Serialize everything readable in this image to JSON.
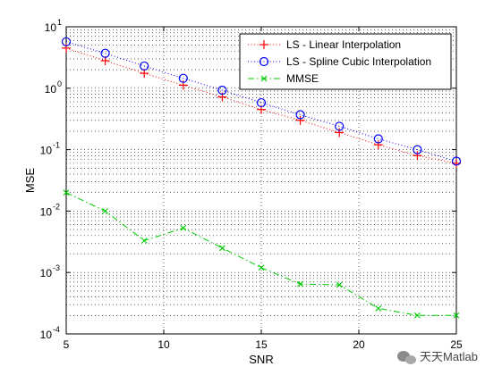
{
  "chart_data": {
    "type": "line",
    "xlabel": "SNR",
    "ylabel": "MSE",
    "xlim": [
      5,
      25
    ],
    "ylim": [
      0.0001,
      10
    ],
    "yscale": "log",
    "grid": "dotted, with minor log gridlines",
    "legend_position": "top-right",
    "x_ticks": [
      5,
      10,
      15,
      20,
      25
    ],
    "y_ticks": [
      {
        "base": "10",
        "exp": "1"
      },
      {
        "base": "10",
        "exp": "0"
      },
      {
        "base": "10",
        "exp": "-1"
      },
      {
        "base": "10",
        "exp": "-2"
      },
      {
        "base": "10",
        "exp": "-3"
      },
      {
        "base": "10",
        "exp": "-4"
      }
    ],
    "series": [
      {
        "name": "LS - Linear Interpolation",
        "color": "#ff0000",
        "marker": "plus",
        "line": "dotted",
        "x": [
          5,
          7,
          9,
          11,
          13,
          15,
          17,
          19,
          21,
          23,
          25
        ],
        "y": [
          4.5,
          2.8,
          1.75,
          1.12,
          0.72,
          0.45,
          0.3,
          0.19,
          0.12,
          0.08,
          0.06
        ]
      },
      {
        "name": "LS - Spline Cubic Interpolation",
        "color": "#0000ff",
        "marker": "circle",
        "line": "dotted",
        "x": [
          5,
          7,
          9,
          11,
          13,
          15,
          17,
          19,
          21,
          23,
          25
        ],
        "y": [
          5.7,
          3.7,
          2.3,
          1.45,
          0.93,
          0.58,
          0.37,
          0.24,
          0.15,
          0.1,
          0.065
        ]
      },
      {
        "name": "MMSE",
        "color": "#00cc00",
        "marker": "x",
        "line": "dashdot",
        "x": [
          5,
          7,
          9,
          11,
          13,
          15,
          17,
          19,
          21,
          23,
          25
        ],
        "y": [
          0.02,
          0.01,
          0.0033,
          0.0053,
          0.0025,
          0.0012,
          0.00065,
          0.00063,
          0.00026,
          0.0002,
          0.0002
        ]
      }
    ]
  },
  "watermark": {
    "text": "天天Matlab",
    "icon": "wechat-icon"
  }
}
